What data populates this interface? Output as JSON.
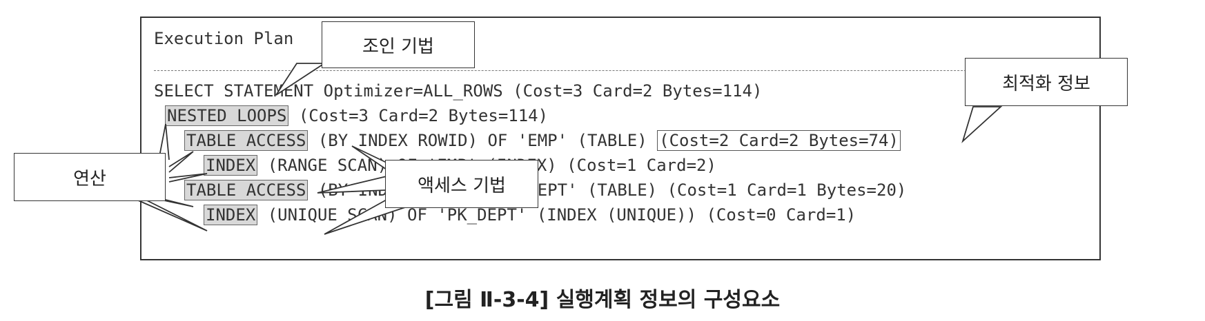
{
  "plan": {
    "header": "Execution Plan",
    "lines": [
      {
        "prefix": "SELECT STATEMENT ",
        "op": "",
        "rest": "Optimizer=ALL_ROWS (Cost=3 Card=2 Bytes=114)",
        "opt": ""
      },
      {
        "prefix": "",
        "op": "NESTED LOOPS",
        "rest": " (Cost=3 Card=2 Bytes=114)",
        "opt": ""
      },
      {
        "prefix": "",
        "op": "TABLE ACCESS",
        "rest": " (BY INDEX ROWID) OF 'EMP' (TABLE) ",
        "opt": "(Cost=2 Card=2 Bytes=74)"
      },
      {
        "prefix": "",
        "op": "INDEX",
        "rest": " (RANGE SCAN) OF 'EMP' (INDEX) (Cost=1 Card=2)",
        "opt": ""
      },
      {
        "prefix": "",
        "op": "TABLE ACCESS",
        "rest": " (BY INDEX ROWID) OF 'DEPT' (TABLE) (Cost=1 Card=1 Bytes=20)",
        "opt": ""
      },
      {
        "prefix": "",
        "op": "INDEX",
        "rest": " (UNIQUE SCAN) OF 'PK_DEPT' (INDEX (UNIQUE)) (Cost=0 Card=1)",
        "opt": ""
      }
    ]
  },
  "callouts": {
    "join": "조인 기법",
    "optimizer": "최적화 정보",
    "operation": "연산",
    "access": "액세스 기법"
  },
  "caption": "[그림 Ⅱ-3-4] 실행계획 정보의 구성요소"
}
